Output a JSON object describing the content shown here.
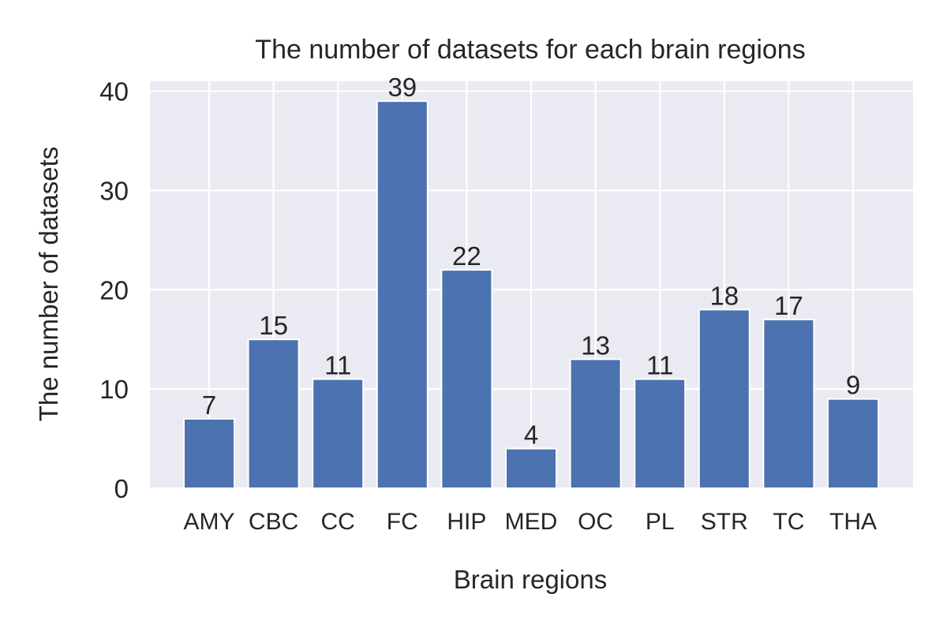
{
  "chart_data": {
    "type": "bar",
    "title": "The number of datasets for each brain regions",
    "xlabel": "Brain regions",
    "ylabel": "The number of datasets",
    "categories": [
      "AMY",
      "CBC",
      "CC",
      "FC",
      "HIP",
      "MED",
      "OC",
      "PL",
      "STR",
      "TC",
      "THA"
    ],
    "values": [
      7,
      15,
      11,
      39,
      22,
      4,
      13,
      11,
      18,
      17,
      9
    ],
    "data_labels": [
      "7",
      "15",
      "11",
      "39",
      "22",
      "4",
      "13",
      "11",
      "18",
      "17",
      "9"
    ],
    "yticks": [
      0,
      10,
      20,
      30,
      40
    ],
    "ytick_labels": [
      "0",
      "10",
      "20",
      "30",
      "40"
    ],
    "ylim": [
      0,
      41
    ],
    "grid": true,
    "legend": "none",
    "colors": {
      "bar": "#4c72b0",
      "plot_background": "#eaeaf2",
      "grid": "#ffffff",
      "text": "#262626"
    }
  }
}
